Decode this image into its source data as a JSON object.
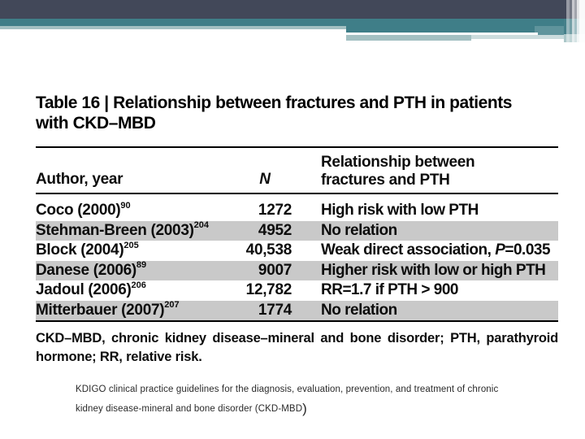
{
  "theme": {
    "dark_bar": "#424859",
    "teal_bar": "#3F7E88",
    "sage_bar": "#A3C0C2",
    "row_shade_gray": "#C9C9C9"
  },
  "table": {
    "title_line1": "Table 16 | Relationship between fractures and PTH in patients",
    "title_line2": "with CKD–MBD",
    "header": {
      "col1": "Author, year",
      "col2": "N",
      "col3_line1": "Relationship between",
      "col3_line2": "fractures and PTH"
    },
    "rows": [
      {
        "author": "Coco (2000)",
        "ref": "90",
        "n": "1272",
        "rel_pre": "High risk with low PTH",
        "rel_italic": "",
        "rel_post": ""
      },
      {
        "author": "Stehman-Breen (2003)",
        "ref": "204",
        "n": "4952",
        "rel_pre": "No relation",
        "rel_italic": "",
        "rel_post": ""
      },
      {
        "author": "Block (2004)",
        "ref": "205",
        "n": "40,538",
        "rel_pre": "Weak direct association, ",
        "rel_italic": "P",
        "rel_post": "=0.035"
      },
      {
        "author": "Danese (2006)",
        "ref": "89",
        "n": "9007",
        "rel_pre": "Higher risk with low or high PTH",
        "rel_italic": "",
        "rel_post": ""
      },
      {
        "author": "Jadoul (2006)",
        "ref": "206",
        "n": "12,782",
        "rel_pre": "RR=1.7 if PTH > 900",
        "rel_italic": "",
        "rel_post": ""
      },
      {
        "author": "Mitterbauer (2007)",
        "ref": "207",
        "n": "1774",
        "rel_pre": "No relation",
        "rel_italic": "",
        "rel_post": ""
      }
    ],
    "footnote": "CKD–MBD, chronic kidney disease–mineral and bone disorder; PTH, parathyroid hormone; RR, relative risk."
  },
  "citation": {
    "text": "KDIGO clinical practice guidelines for the diagnosis, evaluation, prevention, and treatment of chronic kidney disease-mineral and bone disorder (CKD-MBD",
    "closing_paren": ")"
  }
}
